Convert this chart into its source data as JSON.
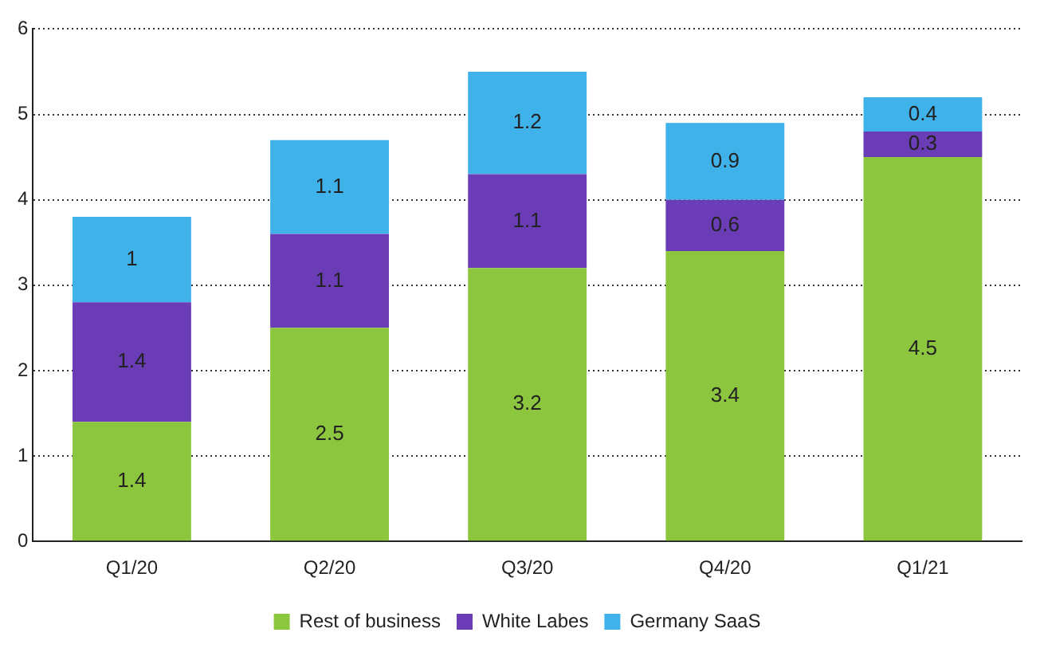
{
  "chart_data": {
    "type": "bar",
    "stacked": true,
    "categories": [
      "Q1/20",
      "Q2/20",
      "Q3/20",
      "Q4/20",
      "Q1/21"
    ],
    "series": [
      {
        "name": "Rest of business",
        "color": "#8cc63e",
        "values": [
          1.4,
          2.5,
          3.2,
          3.4,
          4.5
        ]
      },
      {
        "name": "White Labes",
        "color": "#6a3cb5",
        "values": [
          1.4,
          1.1,
          1.1,
          0.6,
          0.3
        ]
      },
      {
        "name": "Germany SaaS",
        "color": "#3fb2ea",
        "values": [
          1,
          1.1,
          1.2,
          0.9,
          0.4
        ]
      }
    ],
    "ylim": [
      0,
      6
    ],
    "yticks": [
      0,
      1,
      2,
      3,
      4,
      5,
      6
    ],
    "grid": "y",
    "legend": "bottom",
    "data_labels": true
  }
}
